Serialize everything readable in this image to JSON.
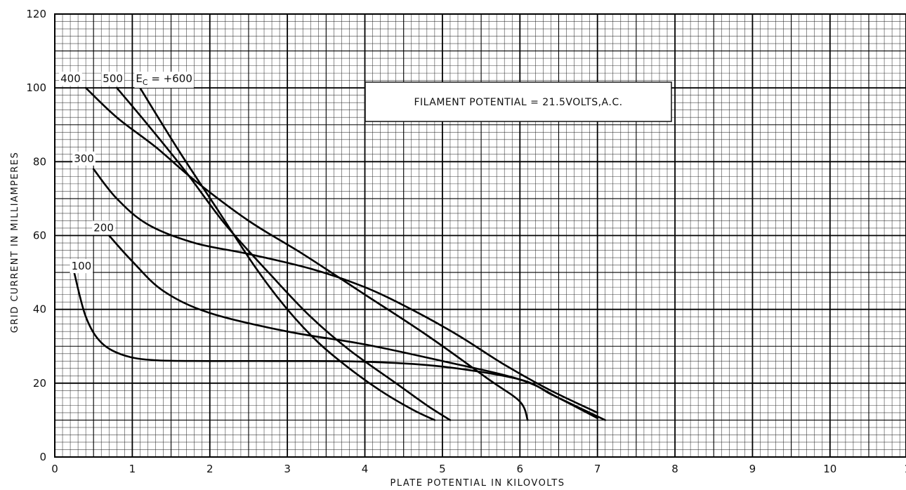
{
  "chart_data": {
    "type": "line",
    "title": "",
    "annotation": "FILAMENT POTENTIAL = 21.5VOLTS,A.C.",
    "xlabel": "PLATE POTENTIAL IN KILOVOLTS",
    "ylabel": "GRID CURRENT IN MILLIAMPERES",
    "xlim": [
      0,
      11
    ],
    "ylim": [
      0,
      120
    ],
    "x_ticks": [
      "0",
      "1",
      "2",
      "3",
      "4",
      "5",
      "6",
      "7",
      "8",
      "9",
      "10",
      "1"
    ],
    "y_ticks": [
      "0",
      "20",
      "40",
      "60",
      "80",
      "100",
      "120"
    ],
    "grid": true,
    "legend": "none",
    "series": [
      {
        "name": "100",
        "points": [
          [
            0.25,
            50
          ],
          [
            0.4,
            38
          ],
          [
            0.6,
            31
          ],
          [
            0.9,
            27.5
          ],
          [
            1.3,
            26.2
          ],
          [
            2,
            26
          ],
          [
            3,
            26
          ],
          [
            4,
            25.8
          ],
          [
            5,
            24.5
          ],
          [
            6,
            21
          ],
          [
            6.4,
            17
          ],
          [
            6.7,
            14
          ],
          [
            7.1,
            10
          ]
        ]
      },
      {
        "name": "200",
        "points": [
          [
            0.7,
            60
          ],
          [
            1.0,
            53
          ],
          [
            1.4,
            45
          ],
          [
            2.0,
            39
          ],
          [
            3.0,
            34
          ],
          [
            4.0,
            30.5
          ],
          [
            5.0,
            26
          ],
          [
            6.0,
            21
          ],
          [
            6.5,
            16
          ],
          [
            7.0,
            10.5
          ]
        ]
      },
      {
        "name": "300",
        "points": [
          [
            0.5,
            78
          ],
          [
            0.8,
            70
          ],
          [
            1.2,
            63
          ],
          [
            1.8,
            58
          ],
          [
            2.5,
            55
          ],
          [
            3.3,
            51
          ],
          [
            4.0,
            46
          ],
          [
            4.6,
            40
          ],
          [
            5.2,
            33
          ],
          [
            5.8,
            25
          ],
          [
            6.4,
            18
          ],
          [
            7.0,
            12
          ]
        ]
      },
      {
        "name": "400",
        "points": [
          [
            0.4,
            100
          ],
          [
            0.8,
            92
          ],
          [
            1.3,
            84
          ],
          [
            1.8,
            75
          ],
          [
            2.5,
            64
          ],
          [
            3.2,
            55
          ],
          [
            4.0,
            44
          ],
          [
            4.8,
            33
          ],
          [
            5.6,
            21
          ],
          [
            6.0,
            15
          ],
          [
            6.1,
            10
          ]
        ]
      },
      {
        "name": "500",
        "points": [
          [
            0.8,
            100
          ],
          [
            1.2,
            90
          ],
          [
            1.7,
            77
          ],
          [
            2.2,
            63
          ],
          [
            2.8,
            49
          ],
          [
            3.3,
            38
          ],
          [
            3.8,
            29
          ],
          [
            4.4,
            20
          ],
          [
            4.8,
            14
          ],
          [
            5.1,
            10
          ]
        ]
      },
      {
        "name": "E<sub>C</sub> = +600",
        "label": "E",
        "label_sub": "C",
        "label_rest": " = +600",
        "points": [
          [
            1.1,
            100
          ],
          [
            1.6,
            83
          ],
          [
            2.1,
            67
          ],
          [
            2.6,
            51
          ],
          [
            3.0,
            40
          ],
          [
            3.4,
            31
          ],
          [
            3.8,
            24
          ],
          [
            4.2,
            18
          ],
          [
            4.6,
            13
          ],
          [
            4.9,
            10
          ]
        ]
      }
    ]
  }
}
